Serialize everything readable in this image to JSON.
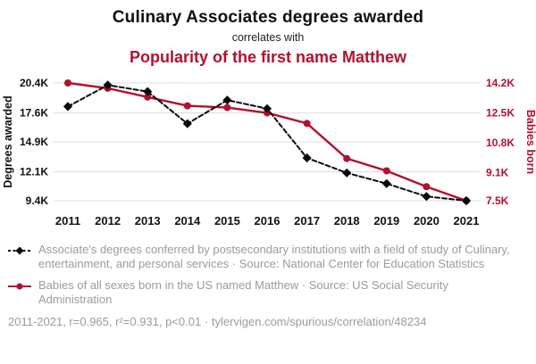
{
  "header": {
    "title": "Culinary Associates degrees awarded",
    "connector": "correlates with",
    "subtitle": "Popularity of the first name Matthew"
  },
  "colors": {
    "accent_red": "#b2102f",
    "text_gray": "#9b9b9b",
    "line_black": "#0a0a0a",
    "gridline": "#dcdcdc"
  },
  "chart_data": {
    "type": "line",
    "title": "Culinary Associates degrees awarded correlates with Popularity of the first name Matthew",
    "x": [
      "2011",
      "2012",
      "2013",
      "2014",
      "2015",
      "2016",
      "2017",
      "2018",
      "2019",
      "2020",
      "2021"
    ],
    "left_axis": {
      "label": "Degrees awarded",
      "min": 9.4,
      "max": 20.4,
      "units": "thousands",
      "ticks": [
        {
          "label": "20.4K",
          "value": 20.4
        },
        {
          "label": "17.6K",
          "value": 17.6
        },
        {
          "label": "14.9K",
          "value": 14.9
        },
        {
          "label": "12.1K",
          "value": 12.1
        },
        {
          "label": "9.4K",
          "value": 9.4
        }
      ]
    },
    "right_axis": {
      "label": "Babies born",
      "min": 7.5,
      "max": 14.2,
      "units": "thousands",
      "ticks": [
        {
          "label": "14.2K",
          "value": 14.2
        },
        {
          "label": "12.5K",
          "value": 12.5
        },
        {
          "label": "10.8K",
          "value": 10.8
        },
        {
          "label": "9.1K",
          "value": 9.1
        },
        {
          "label": "7.5K",
          "value": 7.5
        }
      ]
    },
    "grid": true,
    "legend_position": "below",
    "series": [
      {
        "name": "Associate's degrees conferred (Culinary, entertainment, and personal services)",
        "axis": "left",
        "color": "#0a0a0a",
        "line_style": "dashed",
        "marker": "diamond",
        "values": [
          18.2,
          20.2,
          19.6,
          16.6,
          18.8,
          18.0,
          13.4,
          12.0,
          11.0,
          9.8,
          9.4
        ]
      },
      {
        "name": "Babies of all sexes born in the US named Matthew",
        "axis": "right",
        "color": "#b2102f",
        "line_style": "solid",
        "marker": "circle",
        "values": [
          14.2,
          13.9,
          13.4,
          12.9,
          12.8,
          12.5,
          11.9,
          9.9,
          9.2,
          8.3,
          7.5
        ]
      }
    ]
  },
  "legend": {
    "items": [
      {
        "text": "Associate's degrees conferred by postsecondary institutions with a field of study of Culinary, entertainment, and personal services · Source: National Center for Education Statistics"
      },
      {
        "text": "Babies of all sexes born in the US named Matthew · Source: US Social Security Administration"
      }
    ]
  },
  "footer": {
    "stats": "2011-2021, r=0.965, r²=0.931, p<0.01",
    "separator": "·",
    "url": "tylervigen.com/spurious/correlation/48234"
  }
}
